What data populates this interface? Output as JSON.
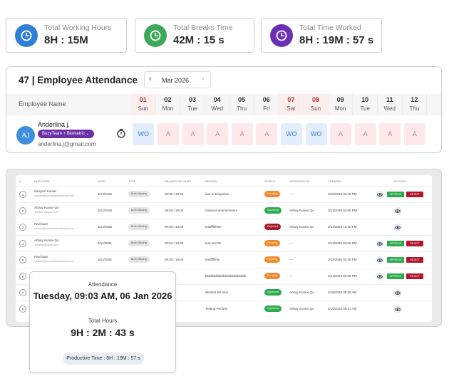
{
  "stats": [
    {
      "label": "Total Working Hours",
      "value": "8H : 15M",
      "color": "#2f7fd6",
      "icon": "clock-icon"
    },
    {
      "label": "Total Breaks Time",
      "value": "42M : 15 s",
      "color": "#3da75a",
      "icon": "clock-icon"
    },
    {
      "label": "Total Time Worked",
      "value": "8H : 19M : 57 s",
      "color": "#6a2fb5",
      "icon": "clock-icon"
    }
  ],
  "attendance": {
    "title": "47 | Employee Attendance",
    "month": "Mar 2026",
    "prev_icon": "‹",
    "next_icon": "›",
    "employee_header": "Employee Name",
    "days": [
      {
        "num": "01",
        "wd": "Sun",
        "weekend": true
      },
      {
        "num": "02",
        "wd": "Mon",
        "weekend": false
      },
      {
        "num": "03",
        "wd": "Tue",
        "weekend": false
      },
      {
        "num": "04",
        "wd": "Wed",
        "weekend": false
      },
      {
        "num": "05",
        "wd": "Thu",
        "weekend": false
      },
      {
        "num": "06",
        "wd": "Fri",
        "weekend": false
      },
      {
        "num": "07",
        "wd": "Sat",
        "weekend": true
      },
      {
        "num": "08",
        "wd": "Sun",
        "weekend": true
      },
      {
        "num": "09",
        "wd": "Mon",
        "weekend": false
      },
      {
        "num": "10",
        "wd": "Tue",
        "weekend": false
      },
      {
        "num": "11",
        "wd": "Wed",
        "weekend": false
      },
      {
        "num": "12",
        "wd": "Thu",
        "weekend": false
      }
    ],
    "employee": {
      "initials": "AJ",
      "name": "Anderlina j.",
      "tag": "BuzyTeam + Biometric ⌄",
      "email": "anderlina.j@gmail.com",
      "statuses": [
        "WO",
        "A",
        "A",
        "A",
        "A",
        "A",
        "WO",
        "WO",
        "A",
        "A",
        "A",
        "A"
      ]
    }
  },
  "table": {
    "headers": [
      "#",
      "Employee",
      "Date",
      "Type",
      "Requested Shift",
      "Reason",
      "Status",
      "Approved By",
      "Created",
      "Actions"
    ],
    "rows": [
      {
        "idx": "1",
        "name": "Sanyam Kumar",
        "sub": "sanyam@businesstimetracker.com",
        "date": "3/13/2026",
        "type": "Both Missing",
        "shift": "09:00 / 18:00",
        "reason": "due to busyteam",
        "status": "Pending",
        "approved_by": "—",
        "created": "3/16/2026 02:19 PM",
        "actions": [
          "view",
          "approve",
          "reject"
        ]
      },
      {
        "idx": "2",
        "name": "Abhay Kumar QA",
        "sub": "Test@employee.com",
        "date": "3/12/2026",
        "type": "Both Missing",
        "shift": "09:00 / 18:00",
        "reason": "mmmmmmmmmmmm",
        "status": "Approved",
        "approved_by": "Abhay Kumar QA",
        "created": "3/13/2026 02:56 PM",
        "actions": [
          "view"
        ]
      },
      {
        "idx": "3",
        "name": "Ravi kant",
        "sub": "ravikant@businesstimetracker.com",
        "date": "3/12/2026",
        "type": "Both Missing",
        "shift": "09:00 / 18:00",
        "reason": "testffffsfsee",
        "status": "Rejected",
        "approved_by": "Abhay Kumar QA",
        "created": "3/13/2026 12:40 PM",
        "actions": [
          "view"
        ]
      },
      {
        "idx": "4",
        "name": "Abhay Kumar QA",
        "sub": "Test@employee.com",
        "date": "3/11/2026",
        "type": "Both Missing",
        "shift": "08:52 / 18:00",
        "reason": "test test bb",
        "status": "Pending",
        "approved_by": "—",
        "created": "3/13/2026 03:56 PM",
        "actions": [
          "view",
          "approve",
          "reject"
        ]
      },
      {
        "idx": "5",
        "name": "Ravi kant",
        "sub": "ravikant@businesstimetracker.com",
        "date": "3/11/2026",
        "type": "Both Missing",
        "shift": "09:00 / 18:00",
        "reason": "testffffsfse",
        "status": "Pending",
        "approved_by": "—",
        "created": "3/13/2026 02:35 PM",
        "actions": [
          "view",
          "approve",
          "reject"
        ]
      },
      {
        "idx": "6",
        "name": "",
        "sub": "",
        "date": "",
        "type": "",
        "shift": "",
        "reason": "bbbbbbbbbbbbbbbbbbbbbbb",
        "status": "Pending",
        "approved_by": "—",
        "created": "3/13/2026 02:35 PM",
        "actions": [
          "view",
          "approve",
          "reject"
        ]
      },
      {
        "idx": "7",
        "name": "",
        "sub": "",
        "date": "",
        "type": "",
        "shift": "",
        "reason": "Worked full time",
        "status": "Approved",
        "approved_by": "Abhay Kumar QA",
        "created": "3/16/2026 09:38 AM",
        "actions": [
          "view"
        ]
      },
      {
        "idx": "8",
        "name": "",
        "sub": "",
        "date": "",
        "type": "",
        "shift": "",
        "reason": "Testing Perform",
        "status": "Approved",
        "approved_by": "Abhay Kumar QA",
        "created": "3/16/2026 09:37 AM",
        "actions": [
          "view"
        ]
      }
    ],
    "approve_label": "APPROVE",
    "reject_label": "REJECT"
  },
  "tooltip": {
    "attendance_label": "Attendance",
    "datetime": "Tuesday, 09:03 AM, 06 Jan 2026",
    "total_label": "Total Hours",
    "total_value": "9H : 2M : 43 s",
    "productive": "Productive Time : 8H : 19M : 57 s"
  }
}
